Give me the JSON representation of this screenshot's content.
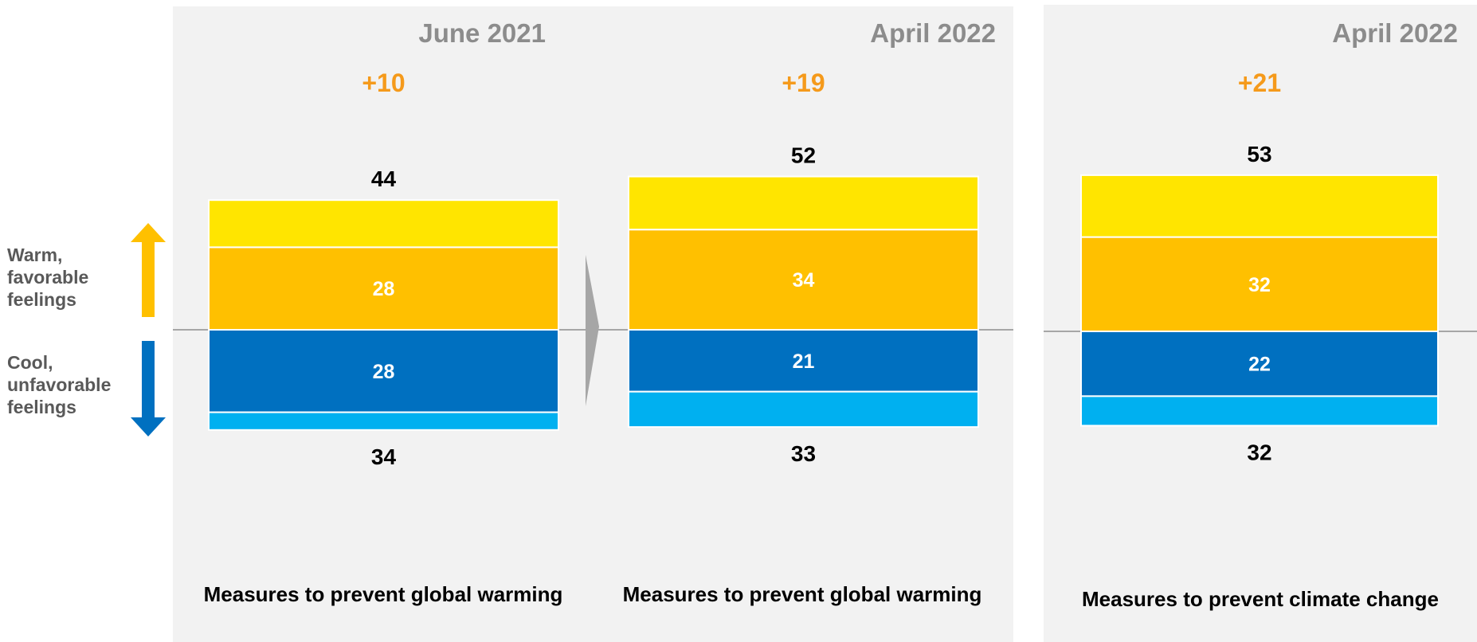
{
  "legend": {
    "warm_label": "Warm, favorable feelings",
    "cool_label": "Cool, unfavorable feelings"
  },
  "colors": {
    "very_warm": "#FFE500",
    "warm": "#FFC000",
    "cool": "#0070C0",
    "very_cool": "#00B0F0",
    "net_text": "#F59A1B",
    "header_text": "#8C8C8C",
    "panel_bg": "#F2F2F2",
    "baseline": "#A6A6A6",
    "divider_arrow": "#A6A6A6"
  },
  "chart_data": [
    {
      "type": "bar",
      "title": "June 2021",
      "category": "Measures to prevent global warming",
      "net": "+10",
      "favorable_total": 44,
      "unfavorable_total": 34,
      "series": [
        {
          "name": "",
          "value": 16,
          "color_key": "very_warm"
        },
        {
          "name": "",
          "value": 28,
          "color_key": "warm"
        },
        {
          "name": "",
          "value": 28,
          "color_key": "cool"
        },
        {
          "name": "",
          "value": 6,
          "color_key": "very_cool"
        }
      ]
    },
    {
      "type": "bar",
      "title": "April 2022",
      "category": "Measures to prevent global warming",
      "net": "+19",
      "favorable_total": 52,
      "unfavorable_total": 33,
      "series": [
        {
          "name": "",
          "value": 18,
          "color_key": "very_warm"
        },
        {
          "name": "",
          "value": 34,
          "color_key": "warm"
        },
        {
          "name": "",
          "value": 21,
          "color_key": "cool"
        },
        {
          "name": "",
          "value": 12,
          "color_key": "very_cool"
        }
      ]
    },
    {
      "type": "bar",
      "title": "April 2022",
      "category": "Measures to prevent climate change",
      "net": "+21",
      "favorable_total": 53,
      "unfavorable_total": 32,
      "series": [
        {
          "name": "",
          "value": 21,
          "color_key": "very_warm"
        },
        {
          "name": "",
          "value": 32,
          "color_key": "warm"
        },
        {
          "name": "",
          "value": 22,
          "color_key": "cool"
        },
        {
          "name": "",
          "value": 10,
          "color_key": "very_cool"
        }
      ]
    }
  ]
}
